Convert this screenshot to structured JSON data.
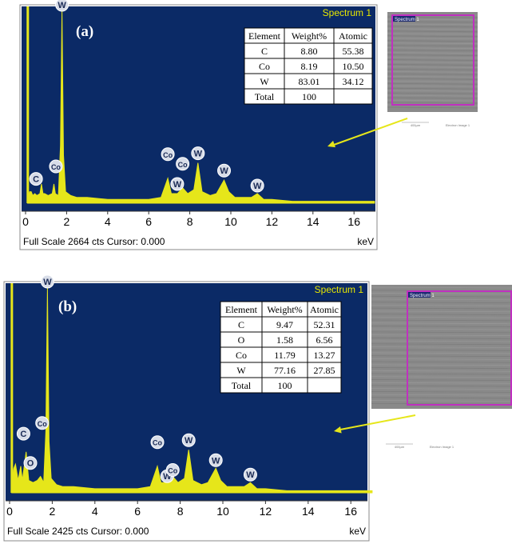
{
  "chart_data": [
    {
      "type": "line",
      "panel_label": "(a)",
      "spectrum_label": "Spectrum 1",
      "footer_left": "Full Scale 2664 cts Cursor: 0.000",
      "xunit": "keV",
      "xlim": [
        0,
        17
      ],
      "xticks": [
        0,
        2,
        4,
        6,
        8,
        10,
        12,
        14,
        16
      ],
      "spectrum": [
        [
          0.1,
          0.02
        ],
        [
          0.2,
          0.06
        ],
        [
          0.277,
          0.06
        ],
        [
          0.35,
          0.04
        ],
        [
          0.45,
          0.05
        ],
        [
          0.55,
          0.04
        ],
        [
          0.7,
          0.05
        ],
        [
          0.776,
          0.1
        ],
        [
          0.85,
          0.05
        ],
        [
          0.93,
          0.05
        ],
        [
          1.1,
          0.04
        ],
        [
          1.3,
          0.05
        ],
        [
          1.38,
          0.1
        ],
        [
          1.45,
          0.05
        ],
        [
          1.6,
          0.04
        ],
        [
          1.7,
          0.3
        ],
        [
          1.775,
          1.0
        ],
        [
          1.85,
          0.25
        ],
        [
          1.95,
          0.06
        ],
        [
          2.2,
          0.04
        ],
        [
          2.5,
          0.03
        ],
        [
          3.0,
          0.03
        ],
        [
          4.0,
          0.02
        ],
        [
          5.0,
          0.02
        ],
        [
          6.0,
          0.02
        ],
        [
          6.6,
          0.03
        ],
        [
          6.93,
          0.13
        ],
        [
          7.1,
          0.05
        ],
        [
          7.4,
          0.05
        ],
        [
          7.65,
          0.08
        ],
        [
          7.9,
          0.05
        ],
        [
          8.2,
          0.07
        ],
        [
          8.398,
          0.21
        ],
        [
          8.6,
          0.06
        ],
        [
          9.0,
          0.04
        ],
        [
          9.3,
          0.05
        ],
        [
          9.67,
          0.12
        ],
        [
          9.9,
          0.06
        ],
        [
          10.2,
          0.03
        ],
        [
          11.0,
          0.03
        ],
        [
          11.29,
          0.05
        ],
        [
          11.6,
          0.02
        ],
        [
          12.0,
          0.02
        ],
        [
          13.0,
          0.01
        ],
        [
          17,
          0.01
        ]
      ],
      "peak_markers": [
        {
          "label": "W",
          "x": 1.775,
          "y": 1.0
        },
        {
          "label": "C",
          "x": 0.277,
          "y": 0.06
        },
        {
          "label": "Co",
          "x": 0.776,
          "y": 0.1
        },
        {
          "label": "Co",
          "x": 6.93,
          "y": 0.13
        },
        {
          "label": "Co",
          "x": 7.65,
          "y": 0.08
        },
        {
          "label": "W",
          "x": 7.39,
          "y": 0.05
        },
        {
          "label": "W",
          "x": 8.398,
          "y": 0.21
        },
        {
          "label": "W",
          "x": 9.67,
          "y": 0.12
        },
        {
          "label": "W",
          "x": 11.29,
          "y": 0.05
        }
      ],
      "table": {
        "headers": [
          "Element",
          "Weight%",
          "Atomic"
        ],
        "rows": [
          [
            "C",
            "8.80",
            "55.38"
          ],
          [
            "Co",
            "8.19",
            "10.50"
          ],
          [
            "W",
            "83.01",
            "34.12"
          ],
          [
            "Total",
            "100",
            ""
          ]
        ]
      },
      "sem_image": {
        "label": "Spectrum 1",
        "caption_left": "400µm",
        "caption_right": "Electron Image 1"
      }
    },
    {
      "type": "line",
      "panel_label": "(b)",
      "spectrum_label": "Spectrum 1",
      "footer_left": "Full Scale 2425 cts Cursor: 0.000",
      "xunit": "keV",
      "xlim": [
        0,
        17
      ],
      "xticks": [
        0,
        2,
        4,
        6,
        8,
        10,
        12,
        14,
        16
      ],
      "spectrum": [
        [
          0.1,
          0.05
        ],
        [
          0.2,
          0.12
        ],
        [
          0.277,
          0.14
        ],
        [
          0.4,
          0.06
        ],
        [
          0.525,
          0.13
        ],
        [
          0.6,
          0.06
        ],
        [
          0.776,
          0.2
        ],
        [
          0.9,
          0.06
        ],
        [
          1.1,
          0.05
        ],
        [
          1.3,
          0.06
        ],
        [
          1.45,
          0.08
        ],
        [
          1.6,
          0.05
        ],
        [
          1.7,
          0.3
        ],
        [
          1.775,
          1.0
        ],
        [
          1.85,
          0.25
        ],
        [
          1.95,
          0.07
        ],
        [
          2.2,
          0.04
        ],
        [
          2.5,
          0.03
        ],
        [
          3.0,
          0.03
        ],
        [
          4.0,
          0.02
        ],
        [
          5.0,
          0.02
        ],
        [
          6.0,
          0.02
        ],
        [
          6.6,
          0.03
        ],
        [
          6.93,
          0.13
        ],
        [
          7.1,
          0.05
        ],
        [
          7.4,
          0.05
        ],
        [
          7.65,
          0.08
        ],
        [
          7.9,
          0.05
        ],
        [
          8.2,
          0.07
        ],
        [
          8.398,
          0.21
        ],
        [
          8.6,
          0.06
        ],
        [
          9.0,
          0.04
        ],
        [
          9.3,
          0.05
        ],
        [
          9.67,
          0.12
        ],
        [
          9.9,
          0.06
        ],
        [
          10.2,
          0.03
        ],
        [
          11.0,
          0.03
        ],
        [
          11.29,
          0.05
        ],
        [
          11.6,
          0.02
        ],
        [
          12.0,
          0.02
        ],
        [
          13.0,
          0.01
        ],
        [
          17,
          0.01
        ]
      ],
      "peak_markers": [
        {
          "label": "W",
          "x": 1.775,
          "y": 1.0
        },
        {
          "label": "C",
          "x": 0.277,
          "y": 0.14
        },
        {
          "label": "O",
          "x": 0.525,
          "y": 0.13
        },
        {
          "label": "Co",
          "x": 0.776,
          "y": 0.2
        },
        {
          "label": "Co",
          "x": 6.93,
          "y": 0.13
        },
        {
          "label": "W",
          "x": 7.39,
          "y": 0.05
        },
        {
          "label": "Co",
          "x": 7.65,
          "y": 0.08
        },
        {
          "label": "W",
          "x": 8.398,
          "y": 0.21
        },
        {
          "label": "W",
          "x": 9.67,
          "y": 0.12
        },
        {
          "label": "W",
          "x": 11.29,
          "y": 0.05
        }
      ],
      "table": {
        "headers": [
          "Element",
          "Weight%",
          "Atomic"
        ],
        "rows": [
          [
            "C",
            "9.47",
            "52.31"
          ],
          [
            "O",
            "1.58",
            "6.56"
          ],
          [
            "Co",
            "11.79",
            "13.27"
          ],
          [
            "W",
            "77.16",
            "27.85"
          ],
          [
            "Total",
            "100",
            ""
          ]
        ]
      },
      "sem_image": {
        "label": "Spectrum 1",
        "caption_left": "400µm",
        "caption_right": "Electron Image 1"
      }
    }
  ],
  "colors": {
    "plot_bg": "#0b2a66",
    "spectrum": "#e6e61a",
    "marker_fill": "#d8dde8",
    "marker_text": "#1a2a55",
    "spectrum_label": "#e8e800",
    "arrow": "#e6e61a",
    "sem_bg": "#8a8a8a",
    "sem_frame": "#c030c0"
  }
}
